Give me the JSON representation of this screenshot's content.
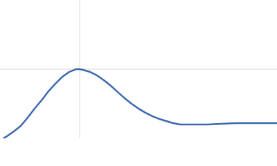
{
  "chart_data": {
    "type": "line",
    "x": [
      5,
      10,
      20,
      30,
      40,
      50,
      60,
      70,
      80,
      90,
      100,
      110,
      115,
      120,
      130,
      140,
      150,
      160,
      170,
      180,
      190,
      200,
      210,
      220,
      230,
      240,
      250,
      260,
      270,
      280,
      300,
      320,
      340,
      360,
      380,
      400
    ],
    "series": [
      {
        "color": "#3a66b0",
        "values": [
          0,
          3,
          10,
          18,
          30,
          43,
          55,
          68,
          79,
          89,
          96,
          100,
          100,
          99,
          96,
          91,
          84,
          76,
          67,
          58,
          50,
          43,
          37,
          32,
          28,
          25,
          22,
          20,
          20,
          20,
          20,
          21,
          22,
          22,
          22,
          22
        ]
      }
    ],
    "xlim": [
      0,
      400
    ],
    "ylim": [
      0,
      200
    ],
    "xticks": [
      115
    ],
    "yticks": [
      100
    ],
    "grid": true
  }
}
